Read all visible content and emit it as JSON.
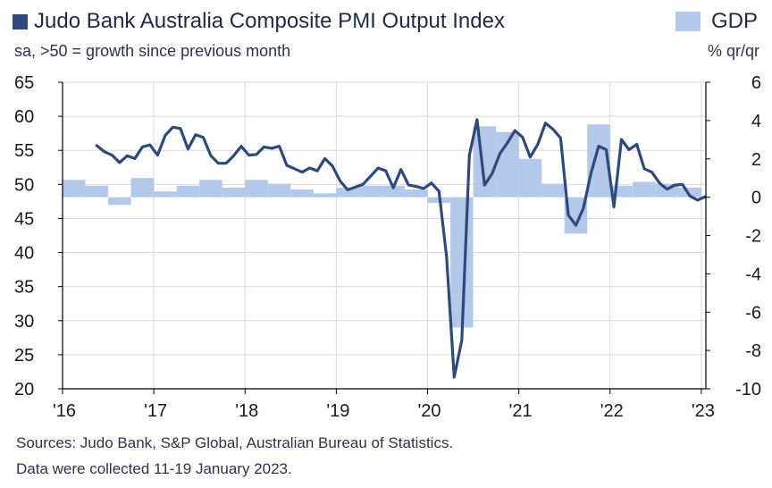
{
  "title": "Judo Bank Australia Composite PMI Output Index",
  "subtitle": "sa, >50 = growth since previous month",
  "gdp_legend": "GDP",
  "gdp_unit": "% qr/qr",
  "footer": {
    "line1": "Sources: Judo Bank, S&P Global, Australian Bureau of Statistics.",
    "line2": "Data were collected 11-19 January 2023."
  },
  "colors": {
    "pmi_line": "#2f4a7a",
    "gdp_bar": "#b3c8ea",
    "grid": "#d9d9d9",
    "axis": "#000000"
  },
  "chart_data": {
    "type": "line",
    "title": "Judo Bank Australia Composite PMI Output Index",
    "x_tick_labels": [
      "'16",
      "'17",
      "'18",
      "'19",
      "'20",
      "'21",
      "'22",
      "'23"
    ],
    "x_range": [
      2016.0,
      2023.05
    ],
    "y_left": {
      "range": [
        20,
        65
      ],
      "ticks": [
        20,
        25,
        30,
        35,
        40,
        45,
        50,
        55,
        60,
        65
      ]
    },
    "y_right": {
      "range": [
        -10,
        6
      ],
      "ticks": [
        -10,
        -8,
        -6,
        -4,
        -2,
        0,
        2,
        4,
        6
      ]
    },
    "grid": true,
    "legend_placement": "top",
    "series": [
      {
        "name": "Judo Bank Australia Composite PMI Output Index",
        "kind": "line",
        "axis": "left",
        "x": [
          2016.375,
          2016.458,
          2016.542,
          2016.625,
          2016.708,
          2016.792,
          2016.875,
          2016.958,
          2017.042,
          2017.125,
          2017.208,
          2017.292,
          2017.375,
          2017.458,
          2017.542,
          2017.625,
          2017.708,
          2017.792,
          2017.875,
          2017.958,
          2018.042,
          2018.125,
          2018.208,
          2018.292,
          2018.375,
          2018.458,
          2018.542,
          2018.625,
          2018.708,
          2018.792,
          2018.875,
          2018.958,
          2019.042,
          2019.125,
          2019.208,
          2019.292,
          2019.375,
          2019.458,
          2019.542,
          2019.625,
          2019.708,
          2019.792,
          2019.875,
          2019.958,
          2020.042,
          2020.125,
          2020.208,
          2020.292,
          2020.375,
          2020.458,
          2020.542,
          2020.625,
          2020.708,
          2020.792,
          2020.875,
          2020.958,
          2021.042,
          2021.125,
          2021.208,
          2021.292,
          2021.375,
          2021.458,
          2021.542,
          2021.625,
          2021.708,
          2021.792,
          2021.875,
          2021.958,
          2022.042,
          2022.125,
          2022.208,
          2022.292,
          2022.375,
          2022.458,
          2022.542,
          2022.625,
          2022.708,
          2022.792,
          2022.875,
          2022.958,
          2023.042
        ],
        "values": [
          55.7,
          54.8,
          54.3,
          53.2,
          54.2,
          53.8,
          55.5,
          55.8,
          54.3,
          57.2,
          58.4,
          58.2,
          55.2,
          57.3,
          56.9,
          54.2,
          53.1,
          53.1,
          54.2,
          55.6,
          54.3,
          54.4,
          55.5,
          55.3,
          55.6,
          52.8,
          52.3,
          51.8,
          52.4,
          52.0,
          53.8,
          52.7,
          50.5,
          49.2,
          49.6,
          50.0,
          51.2,
          52.4,
          52.0,
          49.5,
          52.2,
          49.9,
          49.7,
          49.4,
          50.2,
          49.0,
          39.4,
          21.7,
          27.1,
          54.3,
          59.5,
          49.9,
          51.6,
          54.5,
          56.1,
          57.9,
          56.9,
          54.0,
          55.9,
          59.0,
          58.1,
          56.8,
          45.5,
          44.0,
          46.5,
          51.7,
          55.6,
          55.1,
          46.7,
          56.6,
          55.1,
          55.9,
          52.3,
          51.8,
          50.2,
          49.3,
          49.9,
          50.0,
          48.3,
          47.7,
          48.2
        ]
      },
      {
        "name": "GDP",
        "kind": "bar",
        "axis": "right",
        "periods": [
          [
            2016.0,
            2016.25
          ],
          [
            2016.25,
            2016.5
          ],
          [
            2016.5,
            2016.75
          ],
          [
            2016.75,
            2017.0
          ],
          [
            2017.0,
            2017.25
          ],
          [
            2017.25,
            2017.5
          ],
          [
            2017.5,
            2017.75
          ],
          [
            2017.75,
            2018.0
          ],
          [
            2018.0,
            2018.25
          ],
          [
            2018.25,
            2018.5
          ],
          [
            2018.5,
            2018.75
          ],
          [
            2018.75,
            2019.0
          ],
          [
            2019.0,
            2019.25
          ],
          [
            2019.25,
            2019.5
          ],
          [
            2019.5,
            2019.75
          ],
          [
            2019.75,
            2020.0
          ],
          [
            2020.0,
            2020.25
          ],
          [
            2020.25,
            2020.5
          ],
          [
            2020.5,
            2020.75
          ],
          [
            2020.75,
            2021.0
          ],
          [
            2021.0,
            2021.25
          ],
          [
            2021.25,
            2021.5
          ],
          [
            2021.5,
            2021.75
          ],
          [
            2021.75,
            2022.0
          ],
          [
            2022.0,
            2022.25
          ],
          [
            2022.25,
            2022.5
          ],
          [
            2022.5,
            2022.75
          ],
          [
            2022.75,
            2023.0
          ]
        ],
        "values": [
          0.9,
          0.6,
          -0.4,
          1.0,
          0.3,
          0.6,
          0.9,
          0.5,
          0.9,
          0.7,
          0.4,
          0.2,
          0.5,
          0.6,
          0.6,
          0.4,
          -0.3,
          -6.8,
          3.7,
          3.4,
          2.0,
          0.7,
          -1.9,
          3.8,
          0.6,
          0.8,
          0.7,
          0.5
        ]
      }
    ]
  }
}
